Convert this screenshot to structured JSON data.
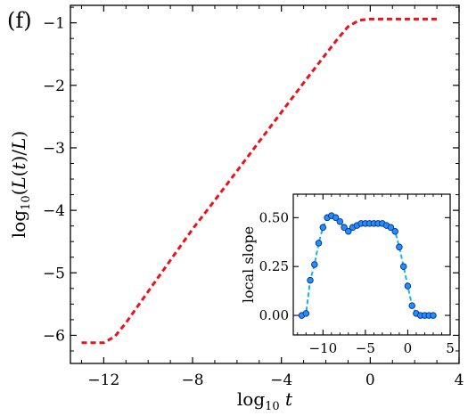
{
  "panel_label": "(f)",
  "main": {
    "xlabel": "log10 t",
    "ylabel": "log10 (L(t)/L)",
    "xticks": [
      -12,
      -8,
      -4,
      0,
      4
    ],
    "yticks": [
      -1,
      -2,
      -3,
      -4,
      -5,
      -6
    ],
    "xtick_labels": [
      "−12",
      "−8",
      "−4",
      "0",
      "4"
    ],
    "ytick_labels": [
      "−1",
      "−2",
      "−3",
      "−4",
      "−5",
      "−6"
    ]
  },
  "inset": {
    "xlabel": "",
    "ylabel": "local slope",
    "xticks": [
      -10,
      -5,
      0,
      5
    ],
    "yticks": [
      0.0,
      0.25,
      0.5
    ],
    "xtick_labels": [
      "−10",
      "−5",
      "0",
      "5"
    ],
    "ytick_labels": [
      "0.00",
      "0.25",
      "0.50"
    ]
  },
  "chart_data": [
    {
      "type": "line",
      "title": "",
      "xlabel": "log10 t",
      "ylabel": "log10 (L(t)/L)",
      "xlim": [
        -13.5,
        4.0
      ],
      "ylim": [
        -6.45,
        -0.72
      ],
      "grid": false,
      "series": [
        {
          "color": "#e8141c",
          "style": "dashed",
          "x": [
            -13.0,
            -12.0,
            -11.5,
            -11.0,
            -10.5,
            -10.0,
            -9.0,
            -8.0,
            -7.0,
            -6.0,
            -5.0,
            -4.0,
            -3.0,
            -2.0,
            -1.5,
            -1.0,
            -0.5,
            0.0,
            1.0,
            2.0,
            3.0
          ],
          "y": [
            -6.12,
            -6.12,
            -6.02,
            -5.8,
            -5.55,
            -5.3,
            -4.8,
            -4.3,
            -3.84,
            -3.37,
            -2.9,
            -2.43,
            -1.96,
            -1.5,
            -1.27,
            -1.06,
            -0.96,
            -0.94,
            -0.94,
            -0.94,
            -0.94
          ]
        }
      ]
    },
    {
      "type": "line",
      "title": "",
      "xlabel": "",
      "ylabel": "local slope",
      "xlim": [
        -13.5,
        5.0
      ],
      "ylim": [
        -0.1,
        0.62
      ],
      "grid": false,
      "series": [
        {
          "color": "#1e90ff",
          "style": "dashed-with-markers",
          "x": [
            -12.5,
            -12.0,
            -11.5,
            -11.0,
            -10.5,
            -10.0,
            -9.5,
            -9.0,
            -8.5,
            -8.0,
            -7.5,
            -7.0,
            -6.5,
            -6.0,
            -5.5,
            -5.0,
            -4.5,
            -4.0,
            -3.5,
            -3.0,
            -2.5,
            -2.0,
            -1.5,
            -1.0,
            -0.5,
            0.0,
            0.5,
            1.0,
            1.5,
            2.0,
            2.5,
            3.0
          ],
          "y": [
            0.0,
            0.01,
            0.18,
            0.26,
            0.37,
            0.45,
            0.5,
            0.51,
            0.5,
            0.48,
            0.45,
            0.43,
            0.45,
            0.46,
            0.47,
            0.47,
            0.47,
            0.47,
            0.47,
            0.47,
            0.46,
            0.45,
            0.43,
            0.35,
            0.25,
            0.15,
            0.05,
            0.01,
            0.0,
            0.0,
            0.0,
            0.0
          ]
        }
      ]
    }
  ]
}
